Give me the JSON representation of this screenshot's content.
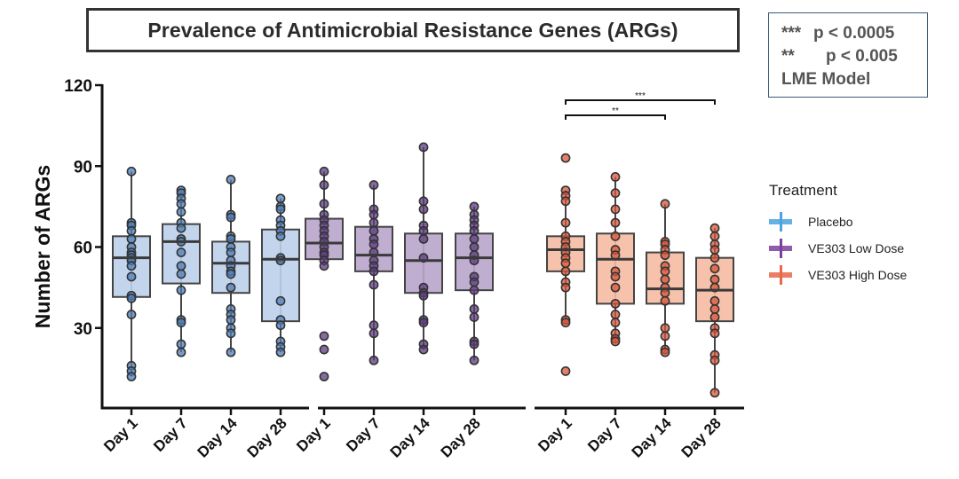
{
  "chart_data": {
    "type": "box",
    "title": "Prevalence of Antimicrobial Resistance Genes (ARGs)",
    "ylabel": "Number of ARGs",
    "xlabel": "",
    "ylim": [
      0,
      120
    ],
    "yticks": [
      30,
      60,
      90,
      120
    ],
    "grid": false,
    "legend": {
      "title": "Treatment",
      "placement": "right",
      "entries": [
        {
          "name": "Placebo",
          "color": "#4aa3e0"
        },
        {
          "name": "VE303 Low Dose",
          "color": "#7b3f9e"
        },
        {
          "name": "VE303 High Dose",
          "color": "#e8684a"
        }
      ]
    },
    "significance_note": {
      "lines": [
        {
          "stars": "***",
          "text": "p < 0.0005"
        },
        {
          "stars": "**",
          "text": "p < 0.005"
        }
      ],
      "model": "LME Model"
    },
    "categories": [
      "Day 1",
      "Day 7",
      "Day 14",
      "Day 28"
    ],
    "groups": [
      {
        "name": "Placebo",
        "box_fill": "#bcd0ea",
        "point_fill": "#4f7fb8",
        "boxes": [
          {
            "category": "Day 1",
            "q1": 41.5,
            "median": 56,
            "q3": 64,
            "whisker_low": 12,
            "whisker_high": 88,
            "points": [
              88,
              69,
              68,
              66,
              63,
              60,
              58,
              57,
              56,
              55,
              53,
              49,
              42,
              41,
              35,
              16,
              14,
              12
            ]
          },
          {
            "category": "Day 7",
            "q1": 46.5,
            "median": 62,
            "q3": 68.5,
            "whisker_low": 21,
            "whisker_high": 81,
            "points": [
              81,
              80,
              78,
              76,
              73,
              69,
              67,
              63,
              62,
              58,
              53,
              50,
              44,
              33,
              32,
              24,
              21
            ]
          },
          {
            "category": "Day 14",
            "q1": 43,
            "median": 54,
            "q3": 62,
            "whisker_low": 21,
            "whisker_high": 85,
            "points": [
              85,
              72,
              71,
              64,
              63,
              60,
              58,
              55,
              53,
              51,
              50,
              45,
              37,
              35,
              33,
              30,
              28,
              21
            ]
          },
          {
            "category": "Day 28",
            "q1": 32.5,
            "median": 55.5,
            "q3": 66.5,
            "whisker_low": 21,
            "whisker_high": 78,
            "points": [
              78,
              75,
              74,
              70,
              68,
              66,
              64,
              56,
              55,
              40,
              33,
              31,
              25,
              23,
              21
            ]
          }
        ]
      },
      {
        "name": "VE303 Low Dose",
        "box_fill": "#b9a5cc",
        "point_fill": "#5e3a80",
        "boxes": [
          {
            "category": "Day 1",
            "q1": 55.5,
            "median": 61.5,
            "q3": 70.5,
            "whisker_low": 53,
            "whisker_high": 88,
            "points": [
              88,
              83,
              76,
              72,
              70,
              68,
              66,
              64,
              62,
              60,
              58,
              57,
              55,
              53,
              27,
              22,
              12
            ]
          },
          {
            "category": "Day 7",
            "q1": 51,
            "median": 57,
            "q3": 67.5,
            "whisker_low": 18,
            "whisker_high": 83,
            "points": [
              83,
              74,
              72,
              69,
              66,
              63,
              61,
              58,
              55,
              53,
              51,
              46,
              31,
              28,
              18
            ]
          },
          {
            "category": "Day 14",
            "q1": 43,
            "median": 55,
            "q3": 65,
            "whisker_low": 22,
            "whisker_high": 97,
            "points": [
              97,
              77,
              74,
              68,
              66,
              63,
              56,
              45,
              43,
              42,
              33,
              32,
              24,
              22
            ]
          },
          {
            "category": "Day 28",
            "q1": 44,
            "median": 56,
            "q3": 65,
            "whisker_low": 18,
            "whisker_high": 75,
            "points": [
              75,
              72,
              70,
              68,
              66,
              63,
              60,
              57,
              55,
              49,
              47,
              44,
              37,
              34,
              25,
              24,
              18
            ]
          }
        ]
      },
      {
        "name": "VE303 High Dose",
        "box_fill": "#f5bba3",
        "point_fill": "#d9553a",
        "boxes": [
          {
            "category": "Day 1",
            "q1": 51,
            "median": 59,
            "q3": 64,
            "whisker_low": 32,
            "whisker_high": 81,
            "points": [
              93,
              81,
              79,
              77,
              69,
              64,
              62,
              60,
              58,
              56,
              54,
              51,
              47,
              45,
              33,
              32,
              14
            ]
          },
          {
            "category": "Day 7",
            "q1": 39,
            "median": 55.5,
            "q3": 65,
            "whisker_low": 25,
            "whisker_high": 86,
            "points": [
              86,
              80,
              74,
              69,
              64,
              59,
              57,
              51,
              49,
              45,
              39,
              35,
              32,
              28,
              26,
              25
            ]
          },
          {
            "category": "Day 14",
            "q1": 39,
            "median": 44.5,
            "q3": 58,
            "whisker_low": 21,
            "whisker_high": 76,
            "points": [
              76,
              62,
              61,
              59,
              57,
              53,
              51,
              48,
              45,
              43,
              40,
              30,
              27,
              22,
              21
            ]
          },
          {
            "category": "Day 28",
            "q1": 32.5,
            "median": 44,
            "q3": 56,
            "whisker_low": 6,
            "whisker_high": 67,
            "points": [
              67,
              64,
              61,
              59,
              56,
              52,
              48,
              45,
              40,
              37,
              34,
              30,
              28,
              20,
              18,
              6
            ]
          }
        ]
      }
    ],
    "comparisons": [
      {
        "group": "VE303 High Dose",
        "from": "Day 1",
        "to": "Day 28",
        "label": "***"
      },
      {
        "group": "VE303 High Dose",
        "from": "Day 1",
        "to": "Day 14",
        "label": "**"
      }
    ]
  }
}
